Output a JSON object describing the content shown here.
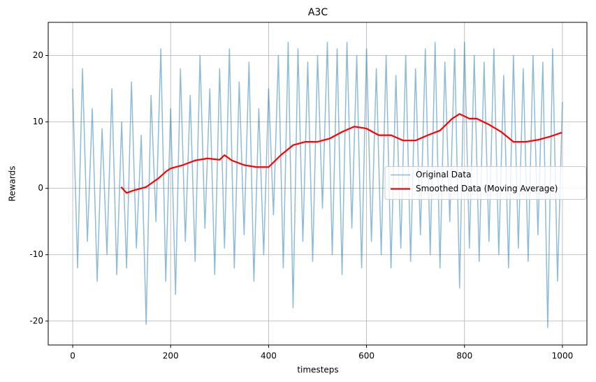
{
  "chart_data": {
    "type": "line",
    "title": "A3C",
    "x_label": "timesteps",
    "y_label": "Rewards",
    "xlim": [
      -50,
      1050
    ],
    "ylim": [
      -23.6,
      25
    ],
    "xticks": [
      0,
      200,
      400,
      600,
      800,
      1000
    ],
    "yticks": [
      -20,
      -10,
      0,
      10,
      20
    ],
    "grid": true,
    "legend": "center right",
    "series": [
      {
        "name": "Original Data",
        "color": "#1f77b4",
        "opacity": 0.5,
        "width": 1.5,
        "x": [
          0,
          10,
          20,
          30,
          40,
          50,
          60,
          70,
          80,
          90,
          100,
          110,
          120,
          130,
          140,
          150,
          160,
          170,
          180,
          190,
          200,
          210,
          220,
          230,
          240,
          250,
          260,
          270,
          280,
          290,
          300,
          310,
          320,
          330,
          340,
          350,
          360,
          370,
          380,
          390,
          400,
          410,
          420,
          430,
          440,
          450,
          460,
          470,
          480,
          490,
          500,
          510,
          520,
          530,
          540,
          550,
          560,
          570,
          580,
          590,
          600,
          610,
          620,
          630,
          640,
          650,
          660,
          670,
          680,
          690,
          700,
          710,
          720,
          730,
          740,
          750,
          760,
          770,
          780,
          790,
          800,
          810,
          820,
          830,
          840,
          850,
          860,
          870,
          880,
          890,
          900,
          910,
          920,
          930,
          940,
          950,
          960,
          970,
          980,
          990,
          1000
        ],
        "values": [
          15,
          -12,
          18,
          -8,
          12,
          -14,
          9,
          -10,
          15,
          -13,
          10,
          -12,
          16,
          -9,
          8,
          -20.5,
          14,
          -5,
          21,
          -14,
          12,
          -16,
          18,
          -8,
          14,
          -11,
          20,
          -6,
          15,
          -13,
          18,
          -9,
          21,
          -12,
          16,
          -7,
          19,
          -14,
          12,
          -10,
          15,
          -4,
          20,
          -12,
          22,
          -18,
          21,
          -8,
          19,
          -11,
          20,
          -3,
          22,
          -10,
          21,
          -13,
          22,
          -6,
          20,
          -12,
          21,
          -8,
          18,
          -10,
          20,
          -12,
          17,
          -9,
          20,
          -11,
          18,
          -7,
          21,
          -10,
          22,
          -12,
          19,
          -5,
          21,
          -15,
          22,
          -9,
          20,
          -11,
          19,
          -8,
          21,
          -10,
          17,
          -12,
          20,
          -9,
          18,
          -11,
          20,
          -7,
          19,
          -21,
          21,
          -14,
          13
        ]
      },
      {
        "name": "Smoothed Data (Moving Average)",
        "color": "#ff0000",
        "opacity": 1,
        "width": 2.2,
        "x": [
          99,
          110,
          125,
          150,
          175,
          190,
          200,
          225,
          250,
          275,
          300,
          310,
          325,
          350,
          375,
          400,
          425,
          450,
          475,
          500,
          525,
          550,
          575,
          600,
          625,
          650,
          675,
          700,
          725,
          750,
          775,
          790,
          810,
          825,
          850,
          875,
          900,
          925,
          950,
          975,
          999
        ],
        "values": [
          0.2,
          -0.7,
          -0.3,
          0.2,
          1.5,
          2.5,
          3,
          3.5,
          4.2,
          4.5,
          4.3,
          5,
          4.2,
          3.5,
          3.2,
          3.2,
          5,
          6.5,
          7,
          7,
          7.5,
          8.5,
          9.3,
          9,
          8,
          8,
          7.2,
          7.2,
          8,
          8.7,
          10.5,
          11.2,
          10.5,
          10.5,
          9.6,
          8.5,
          7,
          7,
          7.3,
          7.8,
          8.4
        ]
      }
    ]
  }
}
